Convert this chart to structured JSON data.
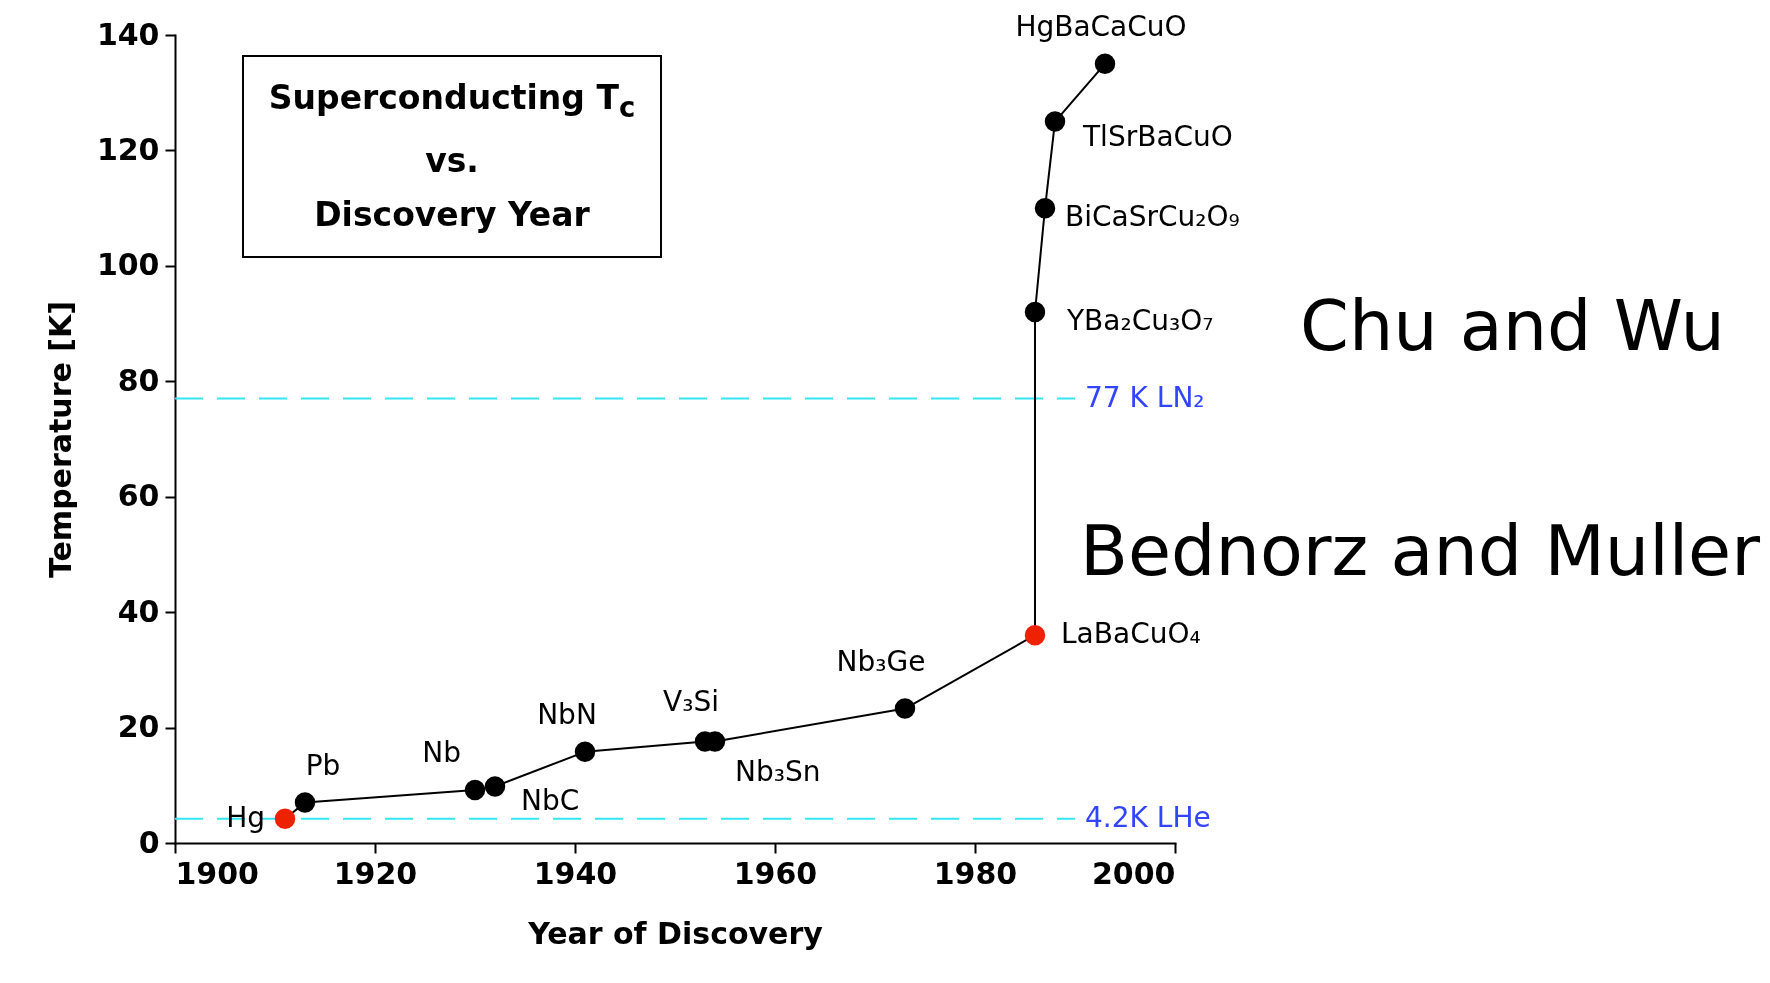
{
  "chart_data": {
    "type": "line",
    "title": "Superconducting T$_{c}$\nvs.\nDiscovery Year",
    "xlabel": "Year of Discovery",
    "ylabel": "Temperature [K]",
    "x": [
      1911,
      1913,
      1930,
      1932,
      1941,
      1953,
      1954,
      1973,
      1986,
      1986,
      1987,
      1988,
      1993
    ],
    "series": [
      {
        "color": "#000000",
        "colors": [
          "#ee2200",
          "#000000",
          "#000000",
          "#000000",
          "#000000",
          "#000000",
          "#000000",
          "#000000",
          "#ee2200",
          "#000000",
          "#000000",
          "#000000",
          "#000000"
        ],
        "values": [
          4.2,
          7.0,
          9.2,
          9.8,
          15.8,
          17.6,
          17.6,
          23.3,
          36,
          92,
          110,
          125,
          135
        ]
      }
    ],
    "marker": "circle",
    "line_style": "solid",
    "grid": false,
    "xlim": [
      1900,
      2000
    ],
    "xticks": [
      1900,
      1920,
      1940,
      1960,
      1980,
      2000
    ],
    "ylim": [
      0,
      140
    ],
    "yticks": [
      0,
      20,
      40,
      60,
      80,
      100,
      120,
      140
    ],
    "ref_lines": [
      {
        "axis": "y",
        "value": 77,
        "label": "77 K LN₂",
        "color": "#33e6f2",
        "line_style": "dashed"
      },
      {
        "axis": "y",
        "value": 4.2,
        "label": "4.2K LHe",
        "color": "#33e6f2",
        "line_style": "dashed"
      }
    ],
    "annotations": [
      {
        "text": "Hg",
        "x": 1911,
        "y": 4.2
      },
      {
        "text": "Pb",
        "x": 1913,
        "y": 7.0
      },
      {
        "text": "Nb",
        "x": 1930,
        "y": 9.2
      },
      {
        "text": "NbC",
        "x": 1932,
        "y": 9.8
      },
      {
        "text": "NbN",
        "x": 1941,
        "y": 15.8
      },
      {
        "text": "V₃Si",
        "x": 1953,
        "y": 17.6
      },
      {
        "text": "Nb₃Sn",
        "x": 1954,
        "y": 17.6
      },
      {
        "text": "Nb₃Ge",
        "x": 1973,
        "y": 23.3
      },
      {
        "text": "LaBaCuO₄",
        "x": 1986,
        "y": 36
      },
      {
        "text": "YBa₂Cu₃O₇",
        "x": 1986,
        "y": 92
      },
      {
        "text": "BiCaSrCu₂O₉",
        "x": 1987,
        "y": 110
      },
      {
        "text": "TlSrBaCuO",
        "x": 1988,
        "y": 125
      },
      {
        "text": "HgBaCaCuO",
        "x": 1993,
        "y": 135
      },
      "Chu and Wu",
      "Bednorz and Muller"
    ]
  }
}
